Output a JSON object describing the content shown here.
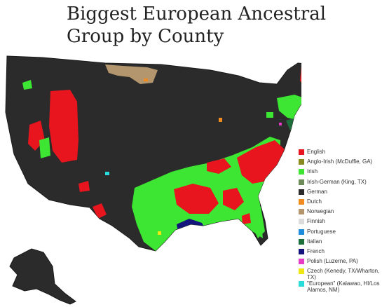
{
  "title": {
    "line1": "Biggest European Ancestral",
    "line2": "Group by County"
  },
  "legend": [
    {
      "label": "English",
      "color": "#e8141e"
    },
    {
      "label": "Anglo-Irish (McDuffie, GA)",
      "color": "#8a8a1e"
    },
    {
      "label": "Irish",
      "color": "#3ce632"
    },
    {
      "label": "Irish-German (King, TX)",
      "color": "#6e8c5a"
    },
    {
      "label": "German",
      "color": "#2b2b2b"
    },
    {
      "label": "Dutch",
      "color": "#f08c1e"
    },
    {
      "label": "Norwegian",
      "color": "#b4966e"
    },
    {
      "label": "Finnish",
      "color": "#dcdcdc"
    },
    {
      "label": "Portuguese",
      "color": "#1e8cdc"
    },
    {
      "label": "Italian",
      "color": "#1e6e3c"
    },
    {
      "label": "French",
      "color": "#14147d"
    },
    {
      "label": "Polish (Luzerne, PA)",
      "color": "#e63cc8"
    },
    {
      "label": "Czech (Kenedy, TX/Wharton, TX)",
      "color": "#f0e614"
    },
    {
      "label": "\"European\" (Kalawao, HI/Los Alamos, NM)",
      "color": "#28dcdc"
    }
  ]
}
